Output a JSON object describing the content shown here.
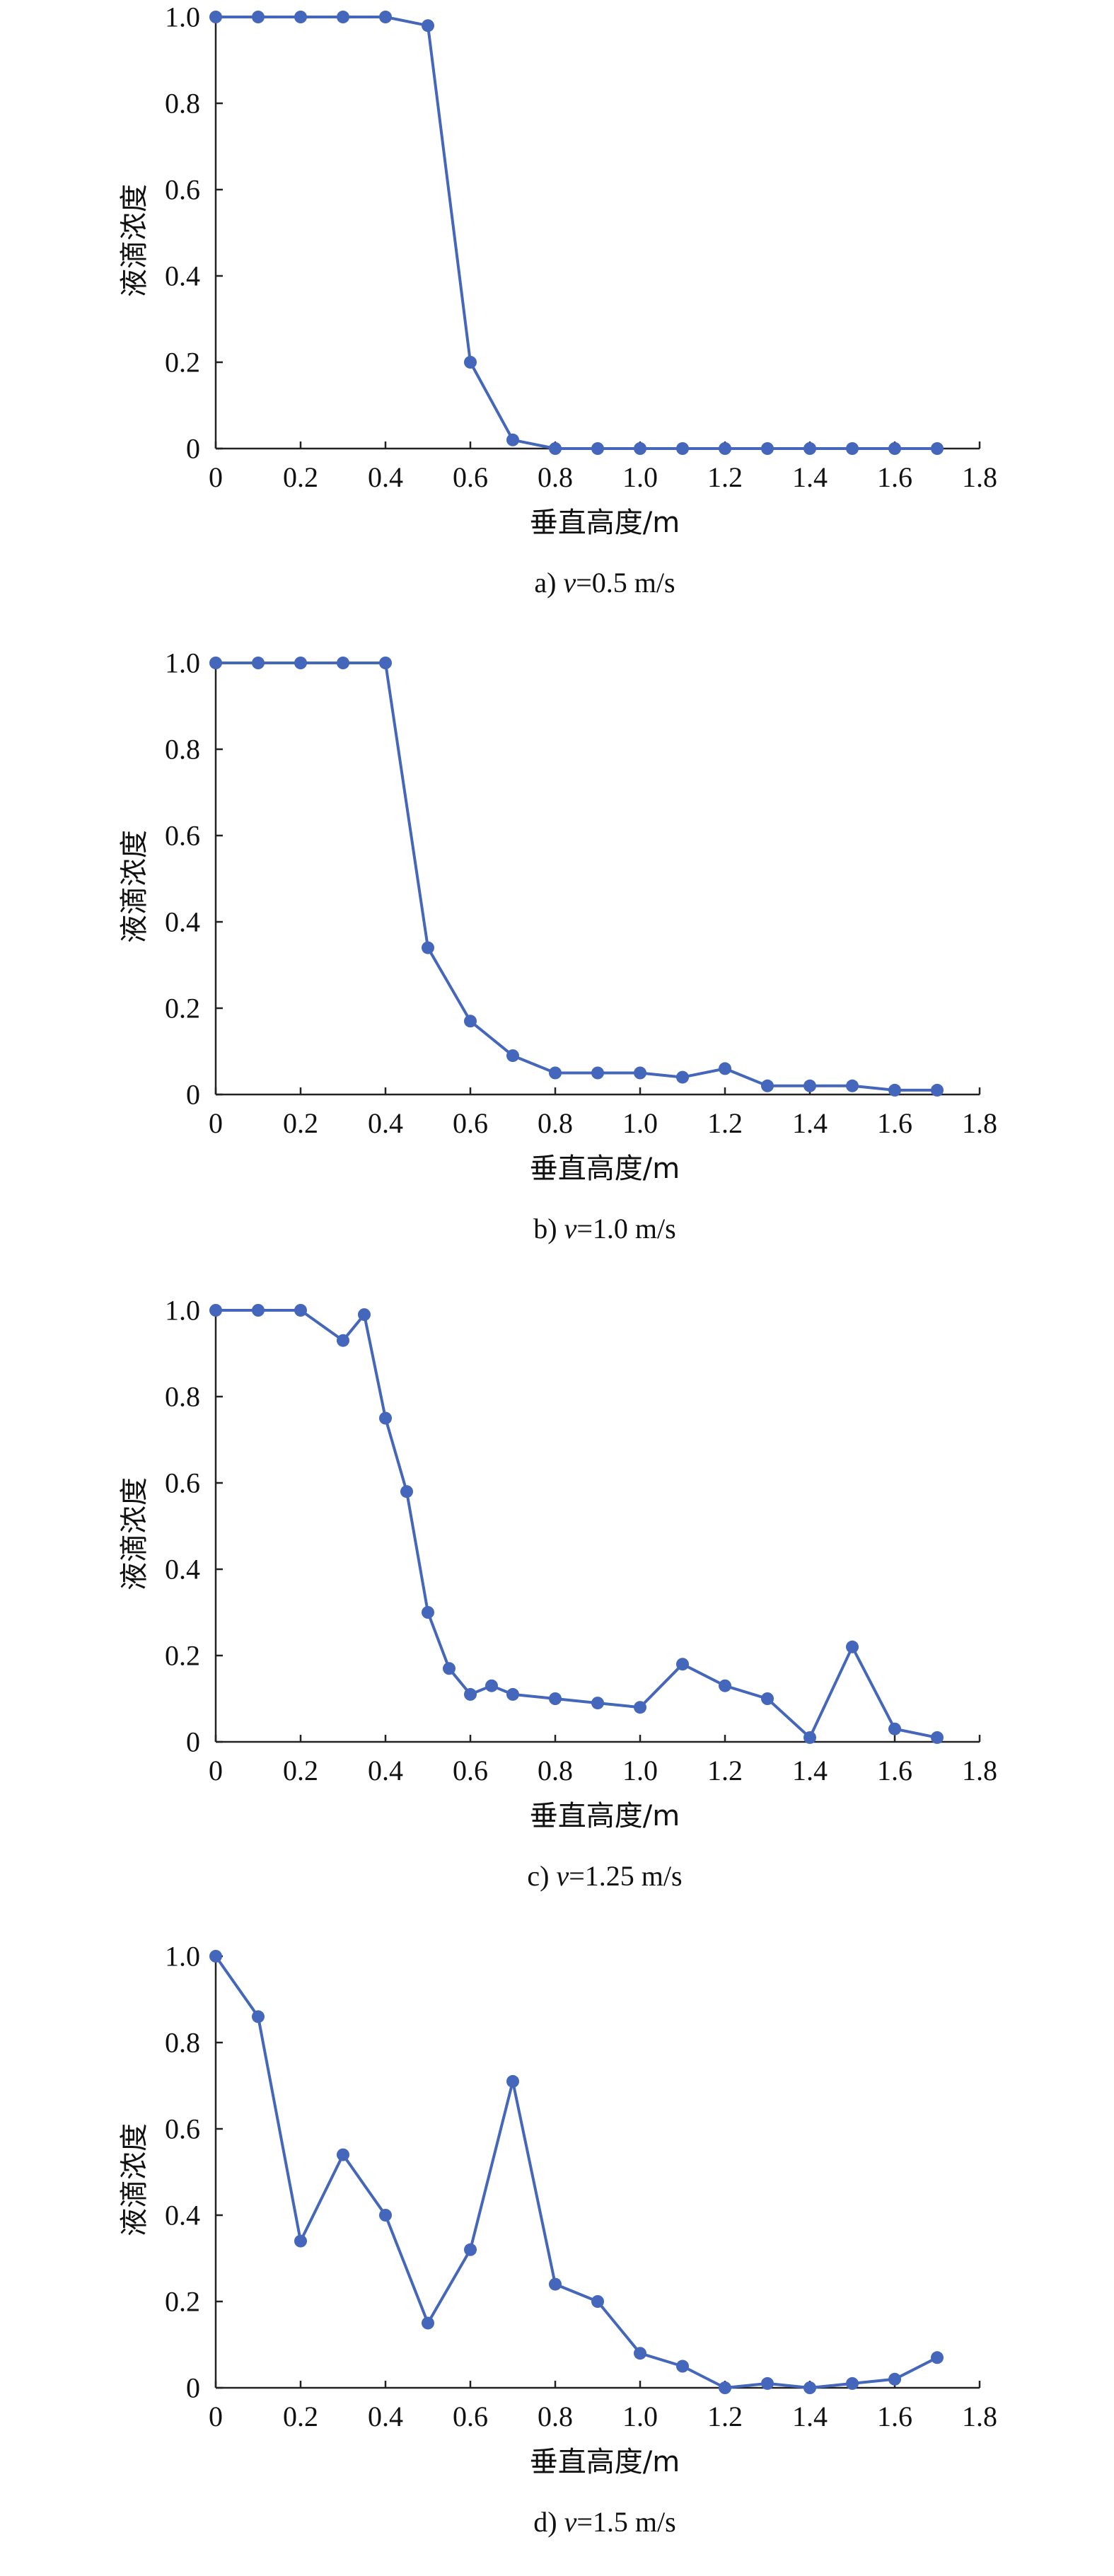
{
  "chart_data": [
    {
      "type": "line",
      "xlabel": "垂直高度/m",
      "ylabel": "液滴浓度",
      "caption": {
        "prefix": "a) ",
        "var": "v",
        "rest": "=0.5 m/s"
      },
      "xlim": [
        0,
        1.8
      ],
      "ylim": [
        0,
        1.0
      ],
      "xticks": [
        "0",
        "0.2",
        "0.4",
        "0.6",
        "0.8",
        "1.0",
        "1.2",
        "1.4",
        "1.6",
        "1.8"
      ],
      "yticks": [
        "0",
        "0.2",
        "0.4",
        "0.6",
        "0.8",
        "1.0"
      ],
      "grid": false,
      "color": "#4466bb",
      "x": [
        0,
        0.1,
        0.2,
        0.3,
        0.4,
        0.5,
        0.6,
        0.7,
        0.8,
        0.9,
        1.0,
        1.1,
        1.2,
        1.3,
        1.4,
        1.5,
        1.6,
        1.7
      ],
      "y": [
        1.0,
        1.0,
        1.0,
        1.0,
        1.0,
        0.98,
        0.2,
        0.02,
        0,
        0,
        0,
        0,
        0,
        0,
        0,
        0,
        0,
        0
      ]
    },
    {
      "type": "line",
      "xlabel": "垂直高度/m",
      "ylabel": "液滴浓度",
      "caption": {
        "prefix": "b) ",
        "var": "v",
        "rest": "=1.0 m/s"
      },
      "xlim": [
        0,
        1.8
      ],
      "ylim": [
        0,
        1.0
      ],
      "xticks": [
        "0",
        "0.2",
        "0.4",
        "0.6",
        "0.8",
        "1.0",
        "1.2",
        "1.4",
        "1.6",
        "1.8"
      ],
      "yticks": [
        "0",
        "0.2",
        "0.4",
        "0.6",
        "0.8",
        "1.0"
      ],
      "grid": false,
      "color": "#4466bb",
      "x": [
        0,
        0.1,
        0.2,
        0.3,
        0.4,
        0.5,
        0.6,
        0.7,
        0.8,
        0.9,
        1.0,
        1.1,
        1.2,
        1.3,
        1.4,
        1.5,
        1.6,
        1.7
      ],
      "y": [
        1.0,
        1.0,
        1.0,
        1.0,
        1.0,
        0.34,
        0.17,
        0.09,
        0.05,
        0.05,
        0.05,
        0.04,
        0.06,
        0.02,
        0.02,
        0.02,
        0.01,
        0.01
      ]
    },
    {
      "type": "line",
      "xlabel": "垂直高度/m",
      "ylabel": "液滴浓度",
      "caption": {
        "prefix": "c) ",
        "var": "v",
        "rest": "=1.25 m/s"
      },
      "xlim": [
        0,
        1.8
      ],
      "ylim": [
        0,
        1.0
      ],
      "xticks": [
        "0",
        "0.2",
        "0.4",
        "0.6",
        "0.8",
        "1.0",
        "1.2",
        "1.4",
        "1.6",
        "1.8"
      ],
      "yticks": [
        "0",
        "0.2",
        "0.4",
        "0.6",
        "0.8",
        "1.0"
      ],
      "grid": false,
      "color": "#4466bb",
      "x": [
        0,
        0.1,
        0.2,
        0.3,
        0.35,
        0.4,
        0.45,
        0.5,
        0.55,
        0.6,
        0.65,
        0.7,
        0.8,
        0.9,
        1.0,
        1.1,
        1.2,
        1.3,
        1.4,
        1.5,
        1.6,
        1.7
      ],
      "y": [
        1.0,
        1.0,
        1.0,
        0.93,
        0.99,
        0.75,
        0.58,
        0.3,
        0.17,
        0.11,
        0.13,
        0.11,
        0.1,
        0.09,
        0.08,
        0.18,
        0.13,
        0.1,
        0.01,
        0.22,
        0.03,
        0.01
      ]
    },
    {
      "type": "line",
      "xlabel": "垂直高度/m",
      "ylabel": "液滴浓度",
      "caption": {
        "prefix": "d) ",
        "var": "v",
        "rest": "=1.5 m/s"
      },
      "xlim": [
        0,
        1.8
      ],
      "ylim": [
        0,
        1.0
      ],
      "xticks": [
        "0",
        "0.2",
        "0.4",
        "0.6",
        "0.8",
        "1.0",
        "1.2",
        "1.4",
        "1.6",
        "1.8"
      ],
      "yticks": [
        "0",
        "0.2",
        "0.4",
        "0.6",
        "0.8",
        "1.0"
      ],
      "grid": false,
      "color": "#4466bb",
      "x": [
        0,
        0.1,
        0.2,
        0.3,
        0.4,
        0.5,
        0.6,
        0.7,
        0.8,
        0.9,
        1.0,
        1.1,
        1.2,
        1.3,
        1.4,
        1.5,
        1.6,
        1.7
      ],
      "y": [
        1.0,
        0.86,
        0.34,
        0.54,
        0.4,
        0.15,
        0.32,
        0.71,
        0.24,
        0.2,
        0.08,
        0.05,
        0,
        0.01,
        0,
        0.01,
        0.02,
        0.07
      ]
    }
  ]
}
